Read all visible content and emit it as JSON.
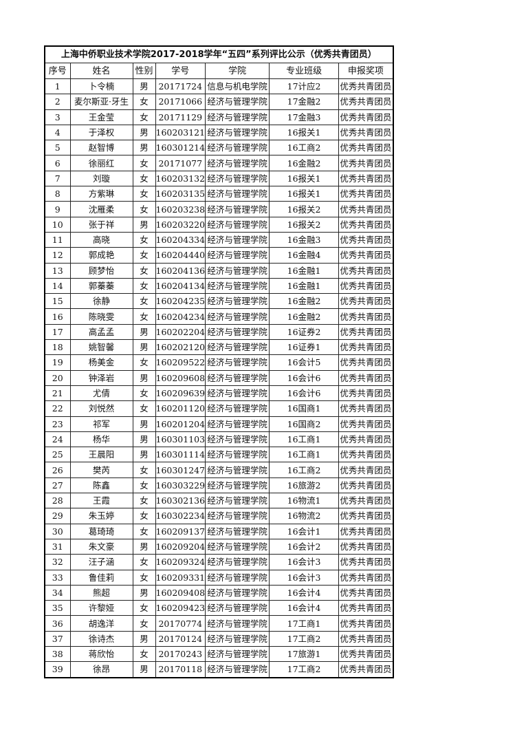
{
  "title": "上海中侨职业技术学院2017-2018学年“五四”系列评比公示（优秀共青团员）",
  "headers": [
    "序号",
    "姓名",
    "性别",
    "学号",
    "学院",
    "专业班级",
    "申报奖项"
  ],
  "rows": [
    [
      "1",
      "卜令楠",
      "男",
      "20171724",
      "信息与机电学院",
      "17计应2",
      "优秀共青团员"
    ],
    [
      "2",
      "麦尔斯亚·牙生",
      "女",
      "20171066",
      "经济与管理学院",
      "17金融2",
      "优秀共青团员"
    ],
    [
      "3",
      "王金莹",
      "女",
      "20171129",
      "经济与管理学院",
      "17金融3",
      "优秀共青团员"
    ],
    [
      "4",
      "于泽权",
      "男",
      "160203121",
      "经济与管理学院",
      "16报关1",
      "优秀共青团员"
    ],
    [
      "5",
      "赵智博",
      "男",
      "160301214",
      "经济与管理学院",
      "16工商2",
      "优秀共青团员"
    ],
    [
      "6",
      "徐丽红",
      "女",
      "20171077",
      "经济与管理学院",
      "16金融2",
      "优秀共青团员"
    ],
    [
      "7",
      "刘璇",
      "女",
      "160203132",
      "经济与管理学院",
      "16报关1",
      "优秀共青团员"
    ],
    [
      "8",
      "方紫琳",
      "女",
      "160203135",
      "经济与管理学院",
      "16报关1",
      "优秀共青团员"
    ],
    [
      "9",
      "沈雁柔",
      "女",
      "160203238",
      "经济与管理学院",
      "16报关2",
      "优秀共青团员"
    ],
    [
      "10",
      "张于祥",
      "男",
      "160203220",
      "经济与管理学院",
      "16报关2",
      "优秀共青团员"
    ],
    [
      "11",
      "高晓",
      "女",
      "160204334",
      "经济与管理学院",
      "16金融3",
      "优秀共青团员"
    ],
    [
      "12",
      "郭成艳",
      "女",
      "160204440",
      "经济与管理学院",
      "16金融4",
      "优秀共青团员"
    ],
    [
      "13",
      "顾梦怡",
      "女",
      "160204136",
      "经济与管理学院",
      "16金融1",
      "优秀共青团员"
    ],
    [
      "14",
      "郭蓁蓁",
      "女",
      "160204134",
      "经济与管理学院",
      "16金融1",
      "优秀共青团员"
    ],
    [
      "15",
      "徐静",
      "女",
      "160204235",
      "经济与管理学院",
      "16金融2",
      "优秀共青团员"
    ],
    [
      "16",
      "陈晓雯",
      "女",
      "160204234",
      "经济与管理学院",
      "16金融2",
      "优秀共青团员"
    ],
    [
      "17",
      "高孟孟",
      "男",
      "160202204",
      "经济与管理学院",
      "16证券2",
      "优秀共青团员"
    ],
    [
      "18",
      "姚智馨",
      "男",
      "160202120",
      "经济与管理学院",
      "16证券1",
      "优秀共青团员"
    ],
    [
      "19",
      "杨美金",
      "女",
      "160209522",
      "经济与管理学院",
      "16会计5",
      "优秀共青团员"
    ],
    [
      "20",
      "钟泽岩",
      "男",
      "160209608",
      "经济与管理学院",
      "16会计6",
      "优秀共青团员"
    ],
    [
      "21",
      "尤倩",
      "女",
      "160209639",
      "经济与管理学院",
      "16会计6",
      "优秀共青团员"
    ],
    [
      "22",
      "刘悦然",
      "女",
      "160201120",
      "经济与管理学院",
      "16国商1",
      "优秀共青团员"
    ],
    [
      "23",
      "祁军",
      "男",
      "160201204",
      "经济与管理学院",
      "16国商2",
      "优秀共青团员"
    ],
    [
      "24",
      "杨华",
      "男",
      "160301103",
      "经济与管理学院",
      "16工商1",
      "优秀共青团员"
    ],
    [
      "25",
      "王晨阳",
      "男",
      "160301114",
      "经济与管理学院",
      "16工商1",
      "优秀共青团员"
    ],
    [
      "26",
      "樊芮",
      "女",
      "160301247",
      "经济与管理学院",
      "16工商2",
      "优秀共青团员"
    ],
    [
      "27",
      "陈鑫",
      "女",
      "160303229",
      "经济与管理学院",
      "16旅游2",
      "优秀共青团员"
    ],
    [
      "28",
      "王霞",
      "女",
      "160302136",
      "经济与管理学院",
      "16物流1",
      "优秀共青团员"
    ],
    [
      "29",
      "朱玉婷",
      "女",
      "160302234",
      "经济与管理学院",
      "16物流2",
      "优秀共青团员"
    ],
    [
      "30",
      "葛琦琦",
      "女",
      "160209137",
      "经济与管理学院",
      "16会计1",
      "优秀共青团员"
    ],
    [
      "31",
      "朱文豪",
      "男",
      "160209204",
      "经济与管理学院",
      "16会计2",
      "优秀共青团员"
    ],
    [
      "32",
      "汪子涵",
      "女",
      "160209324",
      "经济与管理学院",
      "16会计3",
      "优秀共青团员"
    ],
    [
      "33",
      "鲁佳莉",
      "女",
      "160209331",
      "经济与管理学院",
      "16会计3",
      "优秀共青团员"
    ],
    [
      "34",
      "熊超",
      "男",
      "160209408",
      "经济与管理学院",
      "16会计4",
      "优秀共青团员"
    ],
    [
      "35",
      "许黎娅",
      "女",
      "160209423",
      "经济与管理学院",
      "16会计4",
      "优秀共青团员"
    ],
    [
      "36",
      "胡逸洋",
      "女",
      "20170774",
      "经济与管理学院",
      "17工商1",
      "优秀共青团员"
    ],
    [
      "37",
      "徐诗杰",
      "男",
      "20170124",
      "经济与管理学院",
      "17工商2",
      "优秀共青团员"
    ],
    [
      "38",
      "蒋欣怡",
      "女",
      "20170243",
      "经济与管理学院",
      "17旅游1",
      "优秀共青团员"
    ],
    [
      "39",
      "徐昂",
      "男",
      "20170118",
      "经济与管理学院",
      "17工商2",
      "优秀共青团员"
    ]
  ]
}
